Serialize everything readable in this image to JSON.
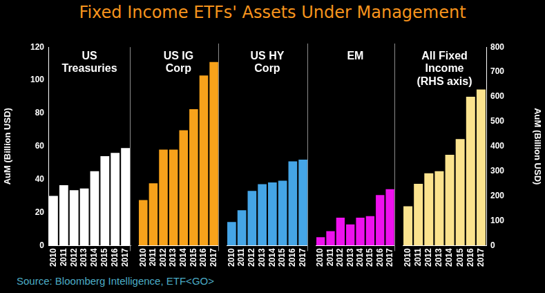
{
  "title": "Fixed Income ETFs' Assets Under Management",
  "source": "Source: Bloomberg Intelligence, ETF<GO>",
  "chart_data": [
    {
      "type": "bar",
      "title": "US\nTreasuries",
      "categories": [
        "2010",
        "2011",
        "2012",
        "2013",
        "2014",
        "2015",
        "2016",
        "2017"
      ],
      "values": [
        30,
        36.5,
        33.5,
        34.5,
        45,
        54,
        56,
        59
      ],
      "color": "#ffffff",
      "ylabel": "AuM (Billion USD)",
      "ylim": [
        0,
        120
      ],
      "yticks": [
        0,
        20,
        40,
        60,
        80,
        100,
        120
      ],
      "grid": false
    },
    {
      "type": "bar",
      "title": "US IG\nCorp",
      "categories": [
        "2010",
        "2011",
        "2012",
        "2013",
        "2014",
        "2015",
        "2016",
        "2017"
      ],
      "values": [
        27,
        37,
        57,
        57,
        68.5,
        81,
        101,
        109
      ],
      "color": "#f7a21b",
      "ylim": [
        0,
        120
      ],
      "yticks": [
        0,
        20,
        40,
        60,
        80,
        100,
        120
      ],
      "grid": false,
      "tick_labels": "x"
    },
    {
      "type": "bar",
      "title": "US HY\nCorp",
      "categories": [
        "2010",
        "2011",
        "2012",
        "2013",
        "2014",
        "2015",
        "2016",
        "2017"
      ],
      "values": [
        14,
        21,
        32.5,
        36.5,
        37.5,
        38.5,
        50,
        51
      ],
      "color": "#45a5e6",
      "ylim": [
        0,
        120
      ],
      "yticks": [
        0,
        20,
        40,
        60,
        80,
        100,
        120
      ],
      "grid": false,
      "tick_labels": "x"
    },
    {
      "type": "bar",
      "title": "EM",
      "categories": [
        "2010",
        "2011",
        "2012",
        "2013",
        "2014",
        "2015",
        "2016",
        "2017"
      ],
      "values": [
        5,
        8.5,
        16.5,
        12.5,
        16.5,
        17.5,
        30,
        33.5
      ],
      "color": "#ee11ee",
      "ylim": [
        0,
        120
      ],
      "yticks": [
        0,
        20,
        40,
        60,
        80,
        100,
        120
      ],
      "grid": false,
      "tick_labels": "x"
    },
    {
      "type": "bar",
      "title": "All Fixed\nIncome\n(RHS axis)",
      "categories": [
        "2010",
        "2011",
        "2012",
        "2013",
        "2014",
        "2015",
        "2016",
        "2017"
      ],
      "values": [
        158,
        249,
        291,
        300,
        366,
        429,
        600,
        629
      ],
      "color": "#fbe38e",
      "y2label": "AuM (Billion USD)",
      "y2lim": [
        0,
        800
      ],
      "y2ticks": [
        0,
        100,
        200,
        300,
        400,
        500,
        600,
        700,
        800
      ],
      "grid": false
    }
  ]
}
